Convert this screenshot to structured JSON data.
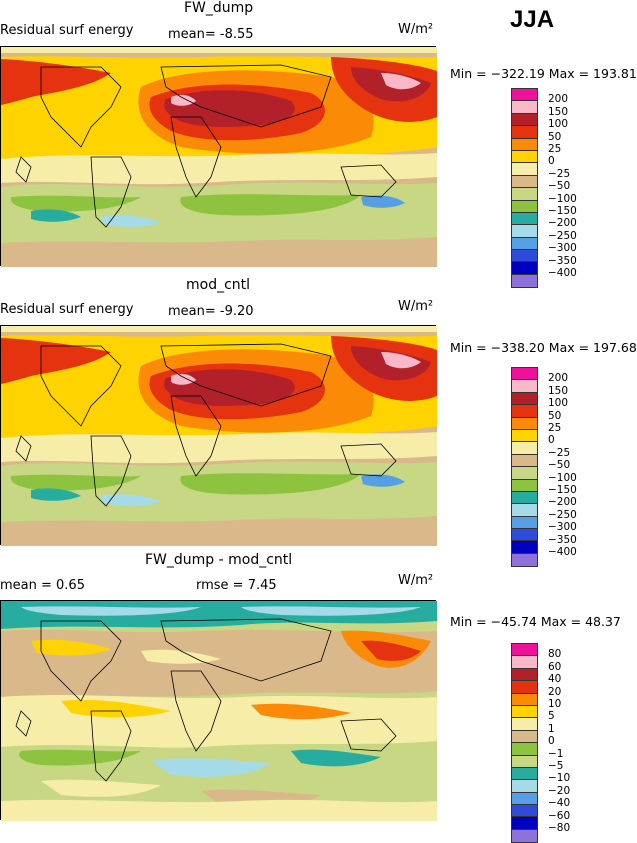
{
  "season": "JJA",
  "panels": [
    {
      "title": "FW_dump",
      "left_label": "Residual surf energy",
      "stat1": "mean=   -8.55",
      "stat2": "",
      "units": "W/m²",
      "minmax": "Min = −322.19  Max = 193.81",
      "levels": [
        "200",
        "150",
        "100",
        "50",
        "25",
        "0",
        "−25",
        "−50",
        "−100",
        "−150",
        "−200",
        "−250",
        "−300",
        "−350",
        "−400"
      ],
      "colors": [
        "#f0119a",
        "#f9b8c8",
        "#b2202a",
        "#e5330f",
        "#fb8b07",
        "#ffd300",
        "#f5eda8",
        "#d9b98a",
        "#c7d783",
        "#8dc33f",
        "#27aca0",
        "#a5dbe9",
        "#55a0e5",
        "#2e4bd9",
        "#0000c0",
        "#8e72d9"
      ]
    },
    {
      "title": "mod_cntl",
      "left_label": "Residual surf energy",
      "stat1": "mean=   -9.20",
      "stat2": "",
      "units": "W/m²",
      "minmax": "Min = −338.20  Max = 197.68",
      "levels": [
        "200",
        "150",
        "100",
        "50",
        "25",
        "0",
        "−25",
        "−50",
        "−100",
        "−150",
        "−200",
        "−250",
        "−300",
        "−350",
        "−400"
      ],
      "colors": [
        "#f0119a",
        "#f9b8c8",
        "#b2202a",
        "#e5330f",
        "#fb8b07",
        "#ffd300",
        "#f5eda8",
        "#d9b98a",
        "#c7d783",
        "#8dc33f",
        "#27aca0",
        "#a5dbe9",
        "#55a0e5",
        "#2e4bd9",
        "#0000c0",
        "#8e72d9"
      ]
    },
    {
      "title": "FW_dump - mod_cntl",
      "left_label": "",
      "stat1": "mean =    0.65",
      "stat2": "rmse =   7.45",
      "units": "W/m²",
      "minmax": "Min = −45.74  Max =  48.37",
      "levels": [
        "80",
        "60",
        "40",
        "20",
        "10",
        "5",
        "1",
        "0",
        "−1",
        "−5",
        "−10",
        "−20",
        "−40",
        "−60",
        "−80"
      ],
      "colors": [
        "#f0119a",
        "#f9b8c8",
        "#b2202a",
        "#e5330f",
        "#fb8b07",
        "#ffd300",
        "#f5eda8",
        "#d9b98a",
        "#8dc33f",
        "#c7d783",
        "#27aca0",
        "#a5dbe9",
        "#55a0e5",
        "#2e4bd9",
        "#0000c0",
        "#8e72d9"
      ]
    }
  ]
}
